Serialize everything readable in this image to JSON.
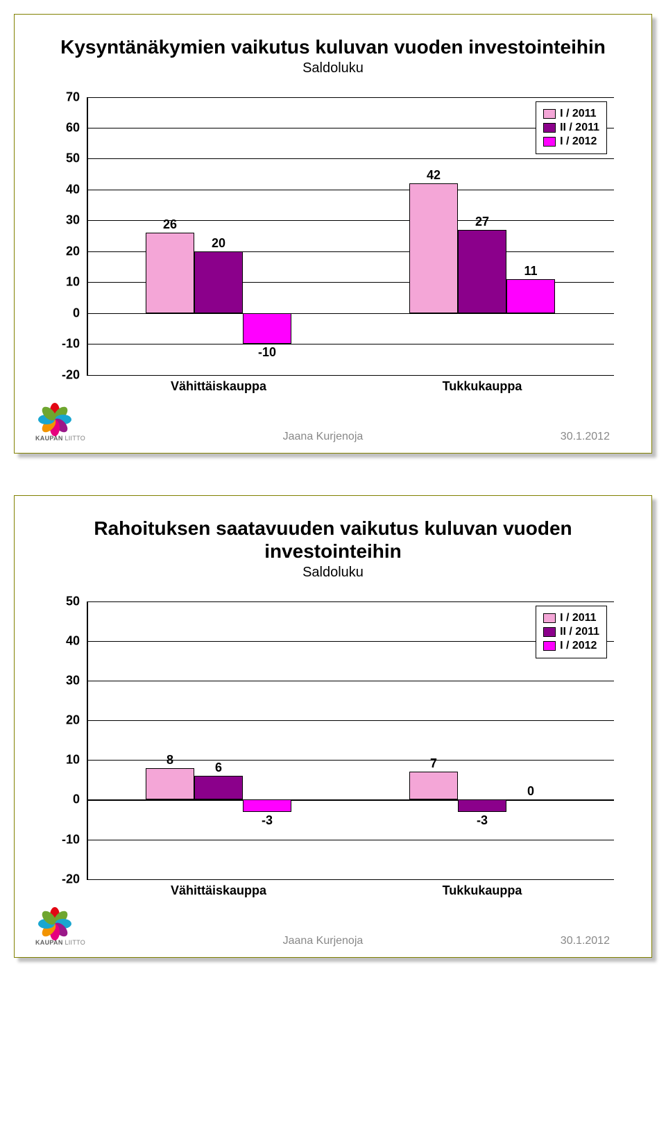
{
  "footer": {
    "author": "Jaana Kurjenoja",
    "date": "30.1.2012",
    "org_line1_a": "KAUPAN",
    "org_line1_b": "LIITTO",
    "logo_colors": [
      "#e30613",
      "#6fa62f",
      "#19a6d0",
      "#9b1889",
      "#e6007e",
      "#f29400",
      "#19a6d0",
      "#6fa62f"
    ]
  },
  "chart1": {
    "title": "Kysyntänäkymien vaikutus kuluvan vuoden investointeihin",
    "subtitle": "Saldoluku",
    "ymin": -20,
    "ymax": 70,
    "ystep": 10,
    "legend": {
      "items": [
        "I / 2011",
        "II / 2011",
        "I / 2012"
      ],
      "colors": [
        "#f4a6d7",
        "#8b008b",
        "#ff00ff"
      ]
    },
    "categories": [
      "Vähittäiskauppa",
      "Tukkukauppa"
    ],
    "series": [
      {
        "values": [
          26,
          42
        ],
        "color": "#f4a6d7"
      },
      {
        "values": [
          20,
          27
        ],
        "color": "#8b008b"
      },
      {
        "values": [
          -10,
          11
        ],
        "color": "#ff00ff"
      }
    ],
    "grid_color": "#000000",
    "background": "#ffffff"
  },
  "chart2": {
    "title": "Rahoituksen saatavuuden vaikutus kuluvan vuoden investointeihin",
    "subtitle": "Saldoluku",
    "ymin": -20,
    "ymax": 50,
    "ystep": 10,
    "legend": {
      "items": [
        "I / 2011",
        "II / 2011",
        "I / 2012"
      ],
      "colors": [
        "#f4a6d7",
        "#8b008b",
        "#ff00ff"
      ]
    },
    "categories": [
      "Vähittäiskauppa",
      "Tukkukauppa"
    ],
    "series": [
      {
        "values": [
          8,
          7
        ],
        "color": "#f4a6d7"
      },
      {
        "values": [
          6,
          -3
        ],
        "color": "#8b008b"
      },
      {
        "values": [
          -3,
          0
        ],
        "color": "#ff00ff"
      }
    ],
    "grid_color": "#000000",
    "background": "#ffffff"
  }
}
